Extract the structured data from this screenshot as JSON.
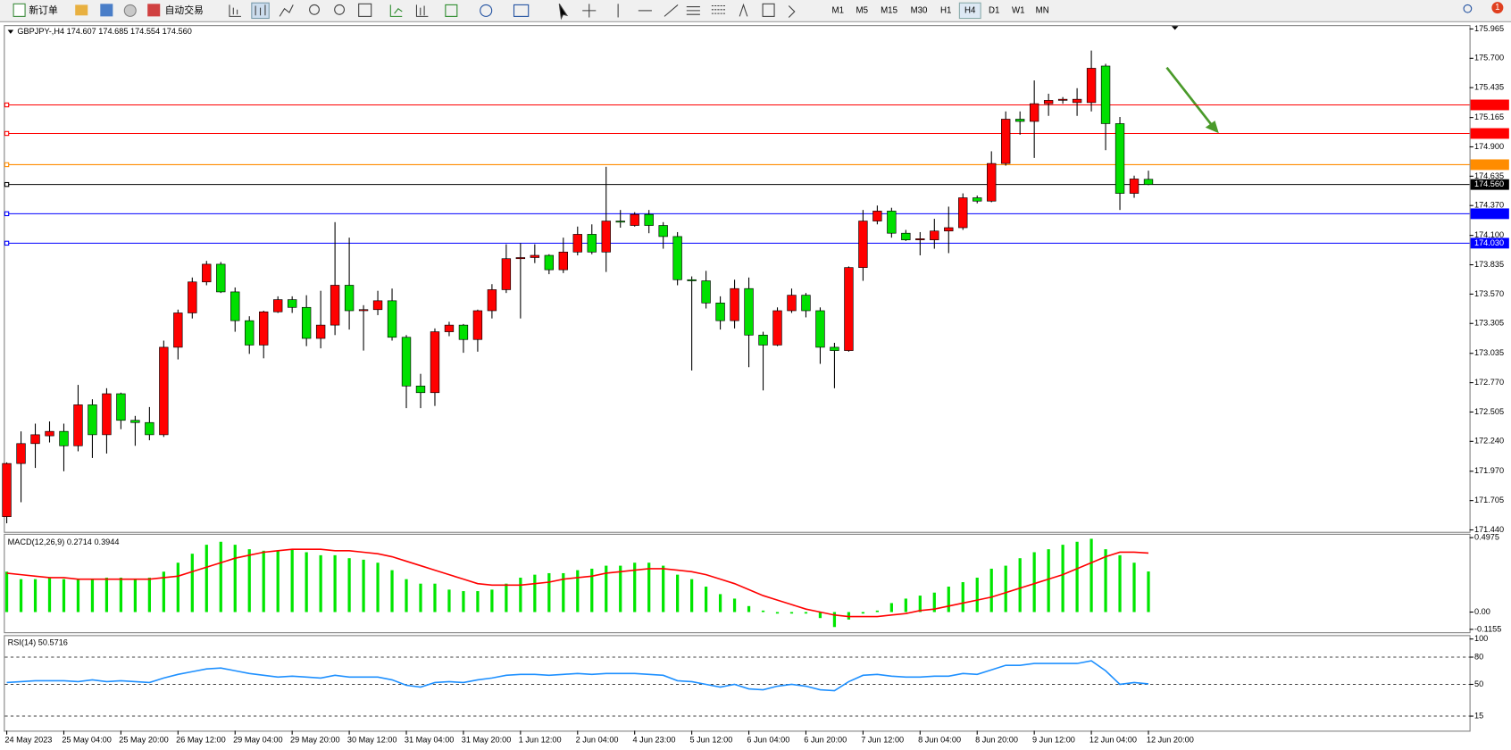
{
  "toolbar": {
    "new_order": "新订单",
    "auto_trading": "自动交易",
    "timeframes": [
      "M1",
      "M5",
      "M15",
      "M30",
      "H1",
      "H4",
      "D1",
      "W1",
      "MN"
    ],
    "notifications": "1"
  },
  "chart_data": [
    {
      "type": "candlestick",
      "title": "GBPJPY-,H4  174.607 174.685 174.554 174.560",
      "up_color": "#ff0000",
      "down_color": "#00e000",
      "categories": [
        "24 May 2023",
        null,
        null,
        null,
        "25 May 04:00",
        null,
        null,
        null,
        "25 May 20:00",
        null,
        null,
        null,
        "26 May 12:00",
        null,
        null,
        null,
        "29 May 04:00",
        null,
        null,
        null,
        "29 May 20:00",
        null,
        null,
        null,
        "30 May 12:00",
        null,
        null,
        null,
        "31 May 04:00",
        null,
        null,
        null,
        "31 May 20:00",
        null,
        null,
        null,
        "1 Jun 12:00",
        null,
        null,
        null,
        "2 Jun 04:00",
        null,
        null,
        null,
        "4 Jun 23:00",
        null,
        null,
        null,
        "5 Jun 12:00",
        null,
        null,
        null,
        "6 Jun 04:00",
        null,
        null,
        null,
        "6 Jun 20:00",
        null,
        null,
        null,
        "7 Jun 12:00",
        null,
        null,
        null,
        "8 Jun 04:00",
        null,
        null,
        null,
        "8 Jun 20:00",
        null,
        null,
        null,
        "9 Jun 12:00",
        null,
        null,
        null,
        "12 Jun 04:00",
        null,
        null,
        null,
        "12 Jun 20:00"
      ],
      "open": [
        171.56,
        172.04,
        172.22,
        172.29,
        172.33,
        172.2,
        172.57,
        172.3,
        172.67,
        172.43,
        172.41,
        172.3,
        173.09,
        173.4,
        173.68,
        173.84,
        173.59,
        173.33,
        173.11,
        173.41,
        173.52,
        173.45,
        173.17,
        173.29,
        173.65,
        173.42,
        173.43,
        173.51,
        173.18,
        172.74,
        172.68,
        173.23,
        173.29,
        173.16,
        173.42,
        173.61,
        173.89,
        173.9,
        173.92,
        173.79,
        173.95,
        174.11,
        173.95,
        174.23,
        174.19,
        174.29,
        174.19,
        174.09,
        173.7,
        173.69,
        173.49,
        173.33,
        173.62,
        173.2,
        173.11,
        173.42,
        173.56,
        173.42,
        173.09,
        173.06,
        173.81,
        174.23,
        174.32,
        174.12,
        174.06,
        174.06,
        174.14,
        174.17,
        174.44,
        174.41,
        174.75,
        175.15,
        175.13,
        175.29,
        175.32,
        175.3,
        175.3,
        175.63,
        175.11,
        174.48,
        174.607
      ],
      "high": [
        172.05,
        172.33,
        172.4,
        172.42,
        172.4,
        172.75,
        172.62,
        172.72,
        172.68,
        172.47,
        172.55,
        173.15,
        173.43,
        173.72,
        173.87,
        173.86,
        173.63,
        173.37,
        173.42,
        173.55,
        173.55,
        173.56,
        173.6,
        174.22,
        174.08,
        173.47,
        173.6,
        173.62,
        173.2,
        172.85,
        173.26,
        173.32,
        173.3,
        173.43,
        173.66,
        174.02,
        174.03,
        174.02,
        173.93,
        174.08,
        174.18,
        174.2,
        174.72,
        174.33,
        174.31,
        174.33,
        174.22,
        174.13,
        173.73,
        173.78,
        173.55,
        173.7,
        173.72,
        173.23,
        173.45,
        173.62,
        173.58,
        173.45,
        173.13,
        173.82,
        174.33,
        174.37,
        174.35,
        174.15,
        174.13,
        174.25,
        174.36,
        174.48,
        174.46,
        174.86,
        175.22,
        175.22,
        175.5,
        175.38,
        175.35,
        175.43,
        175.77,
        175.65,
        175.17,
        174.64,
        174.685
      ],
      "low": [
        171.5,
        171.69,
        172.0,
        172.23,
        171.97,
        172.15,
        172.09,
        172.13,
        172.35,
        172.2,
        172.25,
        172.28,
        172.98,
        173.35,
        173.65,
        173.58,
        173.23,
        173.03,
        172.99,
        173.4,
        173.4,
        173.1,
        173.08,
        173.2,
        173.25,
        173.06,
        173.38,
        173.15,
        172.54,
        172.54,
        172.56,
        173.19,
        173.04,
        173.05,
        173.35,
        173.58,
        173.35,
        173.85,
        173.75,
        173.76,
        173.92,
        173.93,
        173.77,
        174.17,
        174.18,
        174.12,
        173.98,
        173.65,
        172.88,
        173.44,
        173.25,
        173.26,
        172.91,
        172.7,
        173.1,
        173.4,
        173.36,
        172.94,
        172.72,
        173.05,
        173.69,
        174.2,
        174.08,
        174.05,
        173.92,
        173.98,
        173.94,
        174.15,
        174.39,
        174.4,
        174.73,
        175.01,
        174.8,
        175.18,
        175.29,
        175.18,
        175.22,
        174.87,
        174.33,
        174.44,
        174.554
      ],
      "close": [
        172.04,
        172.22,
        172.3,
        172.33,
        172.2,
        172.57,
        172.3,
        172.67,
        172.43,
        172.41,
        172.3,
        173.09,
        173.4,
        173.68,
        173.84,
        173.59,
        173.33,
        173.11,
        173.41,
        173.52,
        173.45,
        173.17,
        173.29,
        173.65,
        173.42,
        173.43,
        173.51,
        173.18,
        172.74,
        172.68,
        173.23,
        173.29,
        173.16,
        173.42,
        173.61,
        173.89,
        173.9,
        173.92,
        173.79,
        173.95,
        174.11,
        173.95,
        174.23,
        174.22,
        174.29,
        174.19,
        174.09,
        173.7,
        173.69,
        173.49,
        173.33,
        173.62,
        173.2,
        173.11,
        173.42,
        173.56,
        173.42,
        173.09,
        173.06,
        173.81,
        174.23,
        174.32,
        174.12,
        174.06,
        174.07,
        174.14,
        174.17,
        174.44,
        174.41,
        174.75,
        175.15,
        175.13,
        175.29,
        175.32,
        175.33,
        175.33,
        175.61,
        175.11,
        174.48,
        174.61,
        174.56
      ],
      "ylim": [
        171.44,
        175.965
      ],
      "yticks": [
        175.965,
        {
          "value": 175.7,
          "label": "175.700"
        },
        175.435,
        175.165,
        {
          "value": 174.9,
          "label": "174.900"
        },
        174.635,
        {
          "value": 174.37,
          "label": "174.370"
        },
        {
          "value": 174.1,
          "label": "174.100"
        },
        173.835,
        {
          "value": 173.57,
          "label": "173.570"
        },
        173.305,
        173.035,
        {
          "value": 172.77,
          "label": "172.770"
        },
        172.505,
        {
          "value": 172.24,
          "label": "172.240"
        },
        {
          "value": 171.97,
          "label": "171.970"
        },
        171.705,
        {
          "value": 171.44,
          "label": "171.440"
        }
      ],
      "levels": [
        {
          "value": 175.279,
          "color": "#ff0000"
        },
        {
          "value": 175.021,
          "color": "#ff0000"
        },
        {
          "value": 174.739,
          "color": "#ff8c00"
        },
        {
          "value": 174.56,
          "label": "174.560",
          "color": "#000000"
        },
        {
          "value": 174.296,
          "color": "#0000ff"
        },
        {
          "value": 174.03,
          "label": "174.030",
          "color": "#0000ff"
        }
      ]
    },
    {
      "type": "macd",
      "title": "MACD(12,26,9) 0.2714 0.3944",
      "ylim": [
        -0.1155,
        0.4975
      ],
      "yticks": [
        0.4975,
        {
          "value": 0,
          "label": "0.00"
        },
        -0.1155
      ],
      "series": [
        {
          "style": "bar",
          "color": "#00e600",
          "values": [
            0.27,
            0.22,
            0.22,
            0.23,
            0.22,
            0.22,
            0.22,
            0.23,
            0.23,
            0.22,
            0.23,
            0.27,
            0.33,
            0.39,
            0.45,
            0.47,
            0.45,
            0.42,
            0.41,
            0.41,
            0.42,
            0.4,
            0.38,
            0.38,
            0.36,
            0.35,
            0.33,
            0.28,
            0.22,
            0.19,
            0.19,
            0.15,
            0.14,
            0.14,
            0.15,
            0.19,
            0.23,
            0.25,
            0.26,
            0.26,
            0.28,
            0.29,
            0.31,
            0.31,
            0.33,
            0.33,
            0.31,
            0.25,
            0.22,
            0.17,
            0.12,
            0.09,
            0.04,
            0.01,
            -0.01,
            -0.01,
            -0.01,
            -0.04,
            -0.1,
            -0.05,
            -0.01,
            0.01,
            0.06,
            0.09,
            0.11,
            0.13,
            0.17,
            0.2,
            0.23,
            0.29,
            0.31,
            0.36,
            0.4,
            0.42,
            0.45,
            0.47,
            0.49,
            0.42,
            0.38,
            0.33,
            0.2714
          ]
        },
        {
          "style": "line",
          "color": "#ff0000",
          "values": [
            0.26,
            0.25,
            0.24,
            0.23,
            0.23,
            0.22,
            0.22,
            0.22,
            0.22,
            0.22,
            0.22,
            0.23,
            0.24,
            0.27,
            0.3,
            0.33,
            0.36,
            0.38,
            0.4,
            0.41,
            0.42,
            0.42,
            0.42,
            0.41,
            0.41,
            0.4,
            0.39,
            0.37,
            0.34,
            0.31,
            0.28,
            0.25,
            0.22,
            0.19,
            0.18,
            0.18,
            0.18,
            0.19,
            0.2,
            0.22,
            0.23,
            0.24,
            0.26,
            0.27,
            0.28,
            0.29,
            0.29,
            0.28,
            0.27,
            0.25,
            0.22,
            0.19,
            0.15,
            0.11,
            0.08,
            0.05,
            0.02,
            0.0,
            -0.02,
            -0.03,
            -0.03,
            -0.03,
            -0.02,
            -0.01,
            0.01,
            0.02,
            0.04,
            0.06,
            0.08,
            0.1,
            0.13,
            0.16,
            0.19,
            0.22,
            0.25,
            0.29,
            0.33,
            0.37,
            0.4,
            0.4,
            0.3944
          ]
        }
      ]
    },
    {
      "type": "line",
      "title": "RSI(14) 50.5716",
      "ylim": [
        0,
        100
      ],
      "yticks": [
        100,
        80,
        50,
        15
      ],
      "series": [
        {
          "color": "#1e90ff",
          "values": [
            52,
            53,
            54,
            54,
            54,
            53,
            55,
            53,
            54,
            53,
            52,
            57,
            61,
            64,
            67,
            68,
            65,
            62,
            60,
            58,
            59,
            58,
            57,
            60,
            58,
            58,
            58,
            55,
            49,
            47,
            52,
            53,
            52,
            55,
            57,
            60,
            61,
            61,
            60,
            61,
            62,
            61,
            62,
            62,
            62,
            61,
            60,
            54,
            53,
            50,
            47,
            50,
            45,
            44,
            48,
            50,
            48,
            44,
            43,
            53,
            60,
            61,
            59,
            58,
            58,
            59,
            59,
            62,
            61,
            66,
            71,
            71,
            73,
            73,
            73,
            73,
            76,
            65,
            50,
            52,
            50.5716
          ]
        }
      ]
    }
  ]
}
